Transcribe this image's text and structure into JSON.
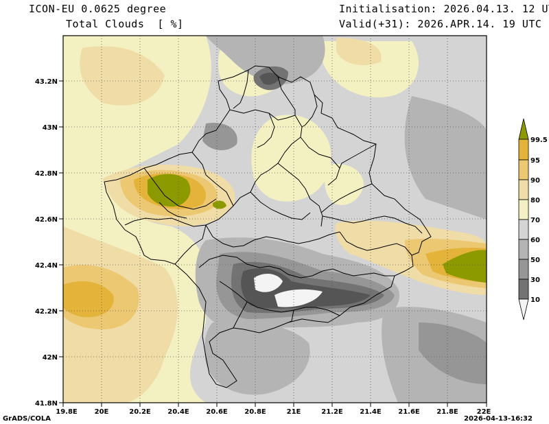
{
  "header": {
    "model": "ICON-EU 0.0625 degree",
    "field": "Total Clouds  [ %]",
    "init": "Initialisation: 2026.04.13. 12 UTC",
    "valid": "Valid(+31): 2026.APR.14. 19 UTC"
  },
  "footer": {
    "left": "GrADS/COLA",
    "right": "2026-04-13-16:32"
  },
  "axes": {
    "lat_ticks": [
      "43.2N",
      "43N",
      "42.8N",
      "42.6N",
      "42.4N",
      "42.2N",
      "42N",
      "41.8N"
    ],
    "lon_ticks": [
      "19.8E",
      "20E",
      "20.2E",
      "20.4E",
      "20.6E",
      "20.8E",
      "21E",
      "21.2E",
      "21.4E",
      "21.6E",
      "21.8E",
      "22E"
    ]
  },
  "legend": {
    "levels": [
      "99.5",
      "95",
      "90",
      "80",
      "70",
      "60",
      "50",
      "30",
      "10"
    ],
    "colors": [
      "#8c9a00",
      "#e3b33a",
      "#ecc873",
      "#f0dca6",
      "#f3f0c1",
      "#d4d4d4",
      "#b4b4b4",
      "#969696",
      "#737373",
      "#555555",
      "#f4f4f4"
    ]
  }
}
